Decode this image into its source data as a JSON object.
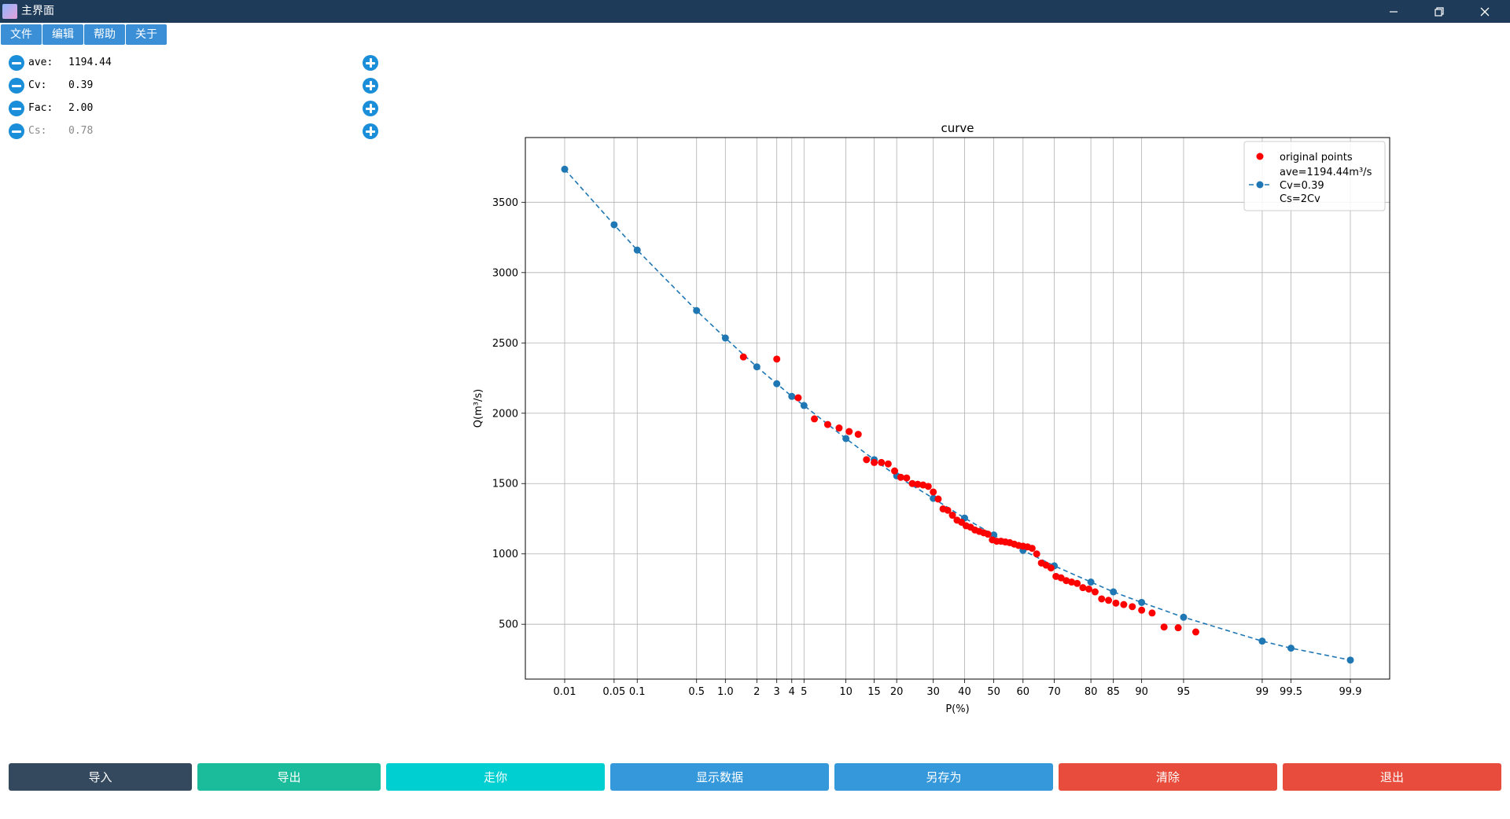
{
  "window": {
    "title": "主界面",
    "minimize": "—",
    "restore": "❐",
    "close": "✕"
  },
  "menu": [
    "文件",
    "编辑",
    "帮助",
    "关于"
  ],
  "params": [
    {
      "label": "ave:",
      "value": "1194.44",
      "enabled": true
    },
    {
      "label": "Cv:",
      "value": "0.39",
      "enabled": true
    },
    {
      "label": "Fac:",
      "value": "2.00",
      "enabled": true
    },
    {
      "label": "Cs:",
      "value": "0.78",
      "enabled": false
    }
  ],
  "buttons": [
    {
      "label": "导入",
      "color": "#34495e"
    },
    {
      "label": "导出",
      "color": "#1abc9c"
    },
    {
      "label": "走你",
      "color": "#00cfd1"
    },
    {
      "label": "显示数据",
      "color": "#3498db"
    },
    {
      "label": "另存为",
      "color": "#3498db"
    },
    {
      "label": "清除",
      "color": "#e74c3c"
    },
    {
      "label": "退出",
      "color": "#e74c3c"
    }
  ],
  "chart_data": {
    "type": "scatter",
    "title": "curve",
    "xlabel": "P(%)",
    "ylabel": "Q(m³/s)",
    "x_scale": "probability",
    "x_ticks": [
      0.01,
      0.05,
      0.1,
      0.5,
      1.0,
      2,
      3,
      4,
      5,
      10,
      15,
      20,
      30,
      40,
      50,
      60,
      70,
      80,
      85,
      90,
      95,
      99,
      99.5,
      99.9
    ],
    "x_tick_labels": [
      "0.01",
      "0.05",
      "0.1",
      "0.5",
      "1.0",
      "2",
      "3",
      "4",
      "5",
      "10",
      "15",
      "20",
      "30",
      "40",
      "50",
      "60",
      "70",
      "80",
      "85",
      "90",
      "95",
      "99",
      "99.5",
      "99.9"
    ],
    "y_ticks": [
      500,
      1000,
      1500,
      2000,
      2500,
      3000,
      3500
    ],
    "y_tick_labels": [
      "500",
      "1000",
      "1500",
      "2000",
      "2500",
      "3000",
      "3500"
    ],
    "ylim": [
      110,
      3960
    ],
    "grid": true,
    "legend_position": "top-right",
    "legend": {
      "points_label": "original points",
      "curve_line1": "ave=1194.44m³/s",
      "curve_line2": "Cv=0.39",
      "curve_line3": "Cs=2Cv"
    },
    "series": [
      {
        "name": "original points",
        "color": "#ff0000",
        "marker": "dot",
        "points": [
          [
            1.5,
            2400
          ],
          [
            3.0,
            2385
          ],
          [
            4.5,
            2110
          ],
          [
            6.0,
            1960
          ],
          [
            7.5,
            1920
          ],
          [
            9.0,
            1895
          ],
          [
            10.5,
            1870
          ],
          [
            12.0,
            1850
          ],
          [
            13.5,
            1670
          ],
          [
            15.0,
            1650
          ],
          [
            16.5,
            1650
          ],
          [
            18.0,
            1640
          ],
          [
            19.5,
            1590
          ],
          [
            21.0,
            1545
          ],
          [
            22.5,
            1540
          ],
          [
            24.0,
            1500
          ],
          [
            25.5,
            1495
          ],
          [
            27.0,
            1490
          ],
          [
            28.5,
            1480
          ],
          [
            30.0,
            1440
          ],
          [
            31.5,
            1390
          ],
          [
            33.0,
            1320
          ],
          [
            34.5,
            1310
          ],
          [
            36.0,
            1275
          ],
          [
            37.5,
            1240
          ],
          [
            39.0,
            1225
          ],
          [
            40.5,
            1200
          ],
          [
            42.0,
            1190
          ],
          [
            43.5,
            1170
          ],
          [
            45.0,
            1160
          ],
          [
            46.5,
            1150
          ],
          [
            48.0,
            1140
          ],
          [
            49.5,
            1100
          ],
          [
            51.0,
            1090
          ],
          [
            52.5,
            1090
          ],
          [
            54.0,
            1085
          ],
          [
            55.5,
            1080
          ],
          [
            57.0,
            1070
          ],
          [
            58.5,
            1060
          ],
          [
            60.0,
            1055
          ],
          [
            61.5,
            1050
          ],
          [
            63.0,
            1040
          ],
          [
            64.5,
            1000
          ],
          [
            66.0,
            935
          ],
          [
            67.5,
            920
          ],
          [
            69.0,
            900
          ],
          [
            70.5,
            840
          ],
          [
            72.0,
            830
          ],
          [
            73.5,
            810
          ],
          [
            75.0,
            800
          ],
          [
            76.5,
            790
          ],
          [
            78.0,
            760
          ],
          [
            79.5,
            750
          ],
          [
            81.0,
            730
          ],
          [
            82.5,
            680
          ],
          [
            84.0,
            670
          ],
          [
            85.5,
            650
          ],
          [
            87.0,
            640
          ],
          [
            88.5,
            625
          ],
          [
            90.0,
            600
          ],
          [
            91.5,
            580
          ],
          [
            93.0,
            480
          ],
          [
            94.5,
            475
          ],
          [
            96.0,
            445
          ]
        ]
      },
      {
        "name": "ave=1194.44m³/s Cv=0.39 Cs=2Cv",
        "color": "#1f77b4",
        "marker": "dot",
        "line": "dashed",
        "points": [
          [
            0.01,
            3735
          ],
          [
            0.05,
            3340
          ],
          [
            0.1,
            3160
          ],
          [
            0.5,
            2730
          ],
          [
            1.0,
            2535
          ],
          [
            2,
            2330
          ],
          [
            3,
            2210
          ],
          [
            4,
            2120
          ],
          [
            5,
            2055
          ],
          [
            10,
            1820
          ],
          [
            15,
            1670
          ],
          [
            20,
            1555
          ],
          [
            30,
            1395
          ],
          [
            40,
            1255
          ],
          [
            50,
            1135
          ],
          [
            60,
            1025
          ],
          [
            70,
            915
          ],
          [
            80,
            800
          ],
          [
            85,
            730
          ],
          [
            90,
            655
          ],
          [
            95,
            550
          ],
          [
            99,
            380
          ],
          [
            99.5,
            330
          ],
          [
            99.9,
            245
          ]
        ]
      }
    ]
  }
}
